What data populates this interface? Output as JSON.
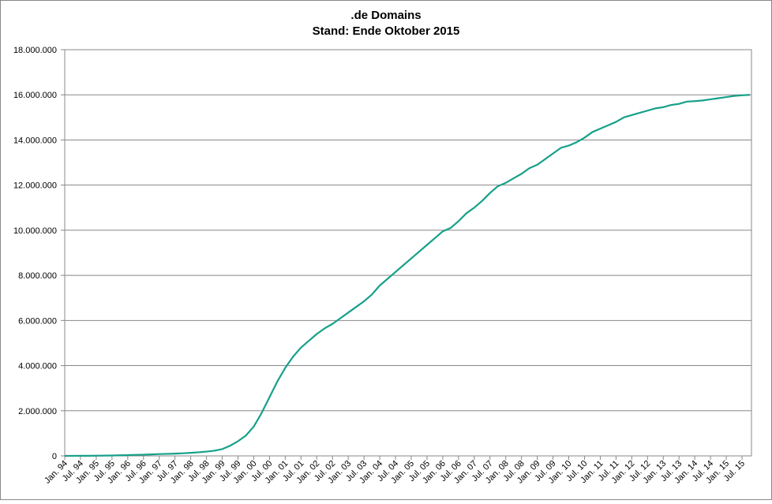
{
  "chart_data": {
    "type": "line",
    "title": ".de Domains",
    "subtitle": "Stand: Ende Oktober 2015",
    "categories": [
      "Jan. 94",
      null,
      "Jul. 94",
      null,
      "Jan. 95",
      null,
      "Jul. 95",
      null,
      "Jan. 96",
      null,
      "Jul. 96",
      null,
      "Jan. 97",
      null,
      "Jul. 97",
      null,
      "Jan. 98",
      null,
      "Jul. 98",
      null,
      "Jan. 99",
      null,
      "Jul. 99",
      null,
      "Jan. 00",
      null,
      "Jul. 00",
      null,
      "Jan. 01",
      null,
      "Jul. 01",
      null,
      "Jan. 02",
      null,
      "Jul. 02",
      null,
      "Jan. 03",
      null,
      "Jul. 03",
      null,
      "Jan. 04",
      null,
      "Jul. 04",
      null,
      "Jan. 05",
      null,
      "Jul. 05",
      null,
      "Jan. 06",
      null,
      "Jul. 06",
      null,
      "Jan. 07",
      null,
      "Jul. 07",
      null,
      "Jan. 08",
      null,
      "Jul. 08",
      null,
      "Jan. 09",
      null,
      "Jul. 09",
      null,
      "Jan. 10",
      null,
      "Jul. 10",
      null,
      "Jan. 11",
      null,
      "Jul. 11",
      null,
      "Jan. 12",
      null,
      "Jul. 12",
      null,
      "Jan. 13",
      null,
      "Jul. 13",
      null,
      "Jan. 14",
      null,
      "Jul. 14",
      null,
      "Jan. 15",
      null,
      "Jul. 15",
      null
    ],
    "series": [
      {
        "color": "#17a08a",
        "values": [
          1000,
          2000,
          3000,
          5000,
          8000,
          12000,
          17000,
          25000,
          35000,
          45000,
          55000,
          65000,
          80000,
          90000,
          100000,
          115000,
          135000,
          160000,
          190000,
          230000,
          300000,
          450000,
          650000,
          900000,
          1300000,
          1900000,
          2600000,
          3300000,
          3900000,
          4400000,
          4800000,
          5100000,
          5400000,
          5650000,
          5850000,
          6100000,
          6350000,
          6600000,
          6850000,
          7150000,
          7550000,
          7850000,
          8150000,
          8450000,
          8750000,
          9050000,
          9350000,
          9650000,
          9950000,
          10100000,
          10400000,
          10750000,
          11000000,
          11300000,
          11650000,
          11950000,
          12100000,
          12300000,
          12500000,
          12750000,
          12900000,
          13150000,
          13400000,
          13650000,
          13750000,
          13900000,
          14100000,
          14350000,
          14500000,
          14650000,
          14800000,
          15000000,
          15100000,
          15200000,
          15300000,
          15400000,
          15450000,
          15550000,
          15600000,
          15700000,
          15720000,
          15750000,
          15800000,
          15850000,
          15900000,
          15950000,
          15980000,
          16000000
        ]
      }
    ],
    "ylim": [
      0,
      18000000
    ],
    "yticks": [
      0,
      {
        "value": 2000000,
        "label": "2.000.000"
      },
      {
        "value": 4000000,
        "label": "4.000.000"
      },
      {
        "value": 6000000,
        "label": "6.000.000"
      },
      {
        "value": 8000000,
        "label": "8.000.000"
      },
      {
        "value": 10000000,
        "label": "10.000.000"
      },
      {
        "value": 12000000,
        "label": "12.000.000"
      },
      {
        "value": 14000000,
        "label": "14.000.000"
      },
      {
        "value": 16000000,
        "label": "16.000.000"
      },
      {
        "value": 18000000,
        "label": "18.000.000"
      }
    ],
    "grid": true
  }
}
